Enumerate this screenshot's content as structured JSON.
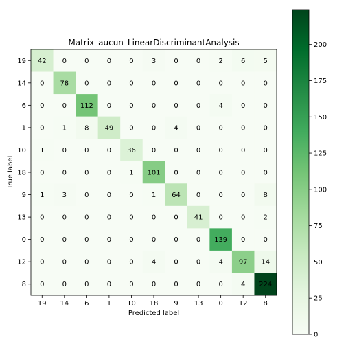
{
  "chart_data": {
    "type": "heatmap",
    "title": "Matrix_aucun_LinearDiscriminantAnalysis",
    "xlabel": "Predicted label",
    "ylabel": "True label",
    "x_labels": [
      "19",
      "14",
      "6",
      "1",
      "10",
      "18",
      "9",
      "13",
      "0",
      "12",
      "8"
    ],
    "y_labels": [
      "19",
      "14",
      "6",
      "1",
      "10",
      "18",
      "9",
      "13",
      "0",
      "12",
      "8"
    ],
    "values": [
      [
        42,
        0,
        0,
        0,
        0,
        3,
        0,
        0,
        2,
        6,
        5
      ],
      [
        0,
        78,
        0,
        0,
        0,
        0,
        0,
        0,
        0,
        0,
        0
      ],
      [
        0,
        0,
        112,
        0,
        0,
        0,
        0,
        0,
        4,
        0,
        0
      ],
      [
        0,
        1,
        8,
        49,
        0,
        0,
        4,
        0,
        0,
        0,
        0
      ],
      [
        1,
        0,
        0,
        0,
        36,
        0,
        0,
        0,
        0,
        0,
        0
      ],
      [
        0,
        0,
        0,
        0,
        1,
        101,
        0,
        0,
        0,
        0,
        0
      ],
      [
        1,
        3,
        0,
        0,
        0,
        1,
        64,
        0,
        0,
        0,
        8
      ],
      [
        0,
        0,
        0,
        0,
        0,
        0,
        0,
        41,
        0,
        0,
        2
      ],
      [
        0,
        0,
        0,
        0,
        0,
        0,
        0,
        0,
        139,
        0,
        0
      ],
      [
        0,
        0,
        0,
        0,
        0,
        4,
        0,
        0,
        4,
        97,
        14
      ],
      [
        0,
        0,
        0,
        0,
        0,
        0,
        0,
        0,
        0,
        4,
        224
      ]
    ],
    "colorbar": {
      "min": 0,
      "max": 224,
      "ticks": [
        0,
        25,
        50,
        75,
        100,
        125,
        150,
        175,
        200
      ]
    },
    "colormap": [
      "#f7fcf5",
      "#e5f5e0",
      "#c7e9c0",
      "#a1d99b",
      "#74c476",
      "#41ab5d",
      "#238b45",
      "#006d2c",
      "#00441b"
    ]
  }
}
